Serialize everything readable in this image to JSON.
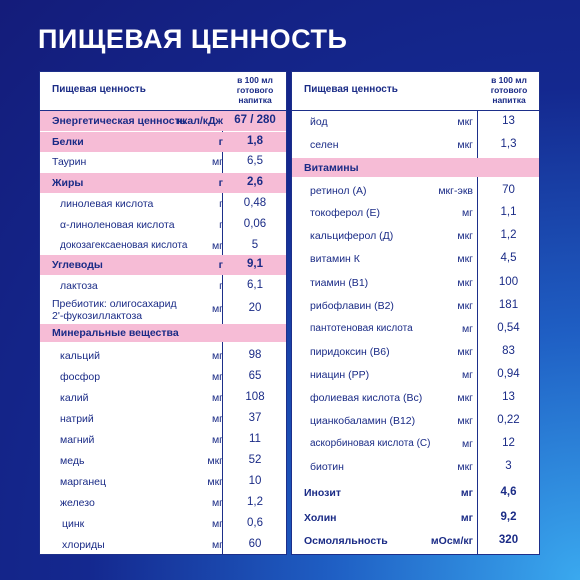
{
  "title": "ПИЩЕВАЯ ЦЕННОСТЬ",
  "left": {
    "header_label": "Пищевая ценность",
    "header_per": "в 100 мл готового напитка",
    "rows": [
      {
        "name": "Энергетическая ценность",
        "unit": "ккал/кДж",
        "value": "67 / 280"
      },
      {
        "name": "Белки",
        "unit": "г",
        "value": "1,8"
      },
      {
        "name": "Таурин",
        "unit": "мг",
        "value": "6,5"
      },
      {
        "name": "Жиры",
        "unit": "г",
        "value": "2,6"
      },
      {
        "name": "линолевая кислота",
        "unit": "г",
        "value": "0,48"
      },
      {
        "name": "α-линоленовая кислота",
        "unit": "г",
        "value": "0,06"
      },
      {
        "name": "докозагексаеновая кислота",
        "unit": "мг",
        "value": "5"
      },
      {
        "name": "Углеводы",
        "unit": "г",
        "value": "9,1"
      },
      {
        "name": "лактоза",
        "unit": "г",
        "value": "6,1"
      },
      {
        "name": "Пребиотик: олигосахарид",
        "name2": "2'-фукозиллактоза",
        "unit": "мг",
        "value": "20"
      },
      {
        "name": "Минеральные вещества",
        "unit": "",
        "value": ""
      },
      {
        "name": "кальций",
        "unit": "мг",
        "value": "98"
      },
      {
        "name": "фосфор",
        "unit": "мг",
        "value": "65"
      },
      {
        "name": "калий",
        "unit": "мг",
        "value": "108"
      },
      {
        "name": "натрий",
        "unit": "мг",
        "value": "37"
      },
      {
        "name": "магний",
        "unit": "мг",
        "value": "11"
      },
      {
        "name": "медь",
        "unit": "мкг",
        "value": "52"
      },
      {
        "name": "марганец",
        "unit": "мкг",
        "value": "10"
      },
      {
        "name": "железо",
        "unit": "мг",
        "value": "1,2"
      },
      {
        "name": "цинк",
        "unit": "мг",
        "value": "0,6"
      },
      {
        "name": "хлориды",
        "unit": "мг",
        "value": "60"
      }
    ]
  },
  "right": {
    "header_label": "Пищевая ценность",
    "header_per": "в 100 мл готового напитка",
    "rows": [
      {
        "name": "йод",
        "unit": "мкг",
        "value": "13"
      },
      {
        "name": "селен",
        "unit": "мкг",
        "value": "1,3"
      },
      {
        "name": "Витамины",
        "unit": "",
        "value": ""
      },
      {
        "name": "ретинол (А)",
        "unit": "мкг-экв",
        "value": "70"
      },
      {
        "name": "токоферол (Е)",
        "unit": "мг",
        "value": "1,1"
      },
      {
        "name": "кальциферол (Д)",
        "unit": "мкг",
        "value": "1,2"
      },
      {
        "name": "витамин К",
        "unit": "мкг",
        "value": "4,5"
      },
      {
        "name": "тиамин (В1)",
        "unit": "мкг",
        "value": "100"
      },
      {
        "name": "рибофлавин (В2)",
        "unit": "мкг",
        "value": "181"
      },
      {
        "name": "пантотеновая кислота",
        "unit": "мг",
        "value": "0,54"
      },
      {
        "name": "пиридоксин (В6)",
        "unit": "мкг",
        "value": "83"
      },
      {
        "name": "ниацин (РР)",
        "unit": "мг",
        "value": "0,94"
      },
      {
        "name": "фолиевая кислота (Вс)",
        "unit": "мкг",
        "value": "13"
      },
      {
        "name": "цианкобаламин (В12)",
        "unit": "мкг",
        "value": "0,22"
      },
      {
        "name": "аскорбиновая кислота (С)",
        "unit": "мг",
        "value": "12"
      },
      {
        "name": "биотин",
        "unit": "мкг",
        "value": "3"
      },
      {
        "name": "Инозит",
        "unit": "мг",
        "value": "4,6"
      },
      {
        "name": "Холин",
        "unit": "мг",
        "value": "9,2"
      },
      {
        "name": "Осмоляльность",
        "unit": "мОсм/кг",
        "value": "320"
      }
    ]
  }
}
